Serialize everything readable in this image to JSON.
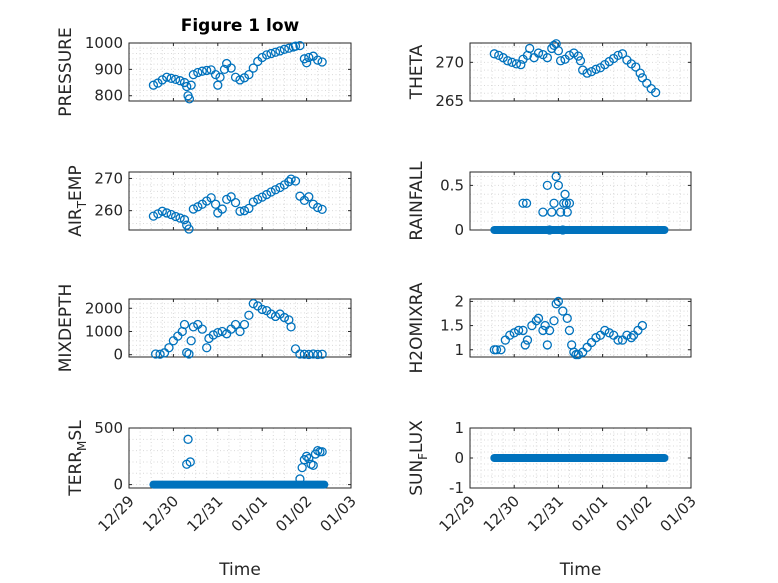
{
  "title": "Figure 1 low",
  "x_axis_label": "Time",
  "x_ticks": [
    "12/29",
    "12/30",
    "12/31",
    "01/01",
    "01/02",
    "01/03"
  ],
  "marker_color": "#0072bd",
  "chart_data": [
    {
      "type": "scatter",
      "name": "pressure",
      "title": "Figure 1 low",
      "ylabel": "PRESSURE",
      "xlabel": "",
      "ylim": [
        780,
        1000
      ],
      "yticks": [
        "800",
        "900",
        "1000"
      ],
      "ytick_values": [
        800,
        900,
        1000
      ],
      "pts": [
        [
          29.55,
          840
        ],
        [
          29.65,
          848
        ],
        [
          29.75,
          860
        ],
        [
          29.85,
          870
        ],
        [
          29.95,
          866
        ],
        [
          30.05,
          862
        ],
        [
          30.15,
          857
        ],
        [
          30.25,
          850
        ],
        [
          30.3,
          835
        ],
        [
          30.33,
          800
        ],
        [
          30.36,
          788
        ],
        [
          30.4,
          840
        ],
        [
          30.45,
          880
        ],
        [
          30.55,
          888
        ],
        [
          30.65,
          893
        ],
        [
          30.75,
          896
        ],
        [
          30.85,
          898
        ],
        [
          30.95,
          880
        ],
        [
          31.0,
          840
        ],
        [
          31.05,
          870
        ],
        [
          31.15,
          900
        ],
        [
          31.2,
          922
        ],
        [
          31.3,
          905
        ],
        [
          31.4,
          870
        ],
        [
          31.5,
          860
        ],
        [
          31.6,
          868
        ],
        [
          31.7,
          880
        ],
        [
          31.8,
          905
        ],
        [
          31.9,
          930
        ],
        [
          32.0,
          945
        ],
        [
          32.1,
          955
        ],
        [
          32.2,
          960
        ],
        [
          32.3,
          965
        ],
        [
          32.4,
          970
        ],
        [
          32.5,
          976
        ],
        [
          32.6,
          980
        ],
        [
          32.7,
          985
        ],
        [
          32.75,
          988
        ],
        [
          32.85,
          990
        ],
        [
          32.95,
          940
        ],
        [
          33.0,
          925
        ],
        [
          33.05,
          945
        ],
        [
          33.15,
          950
        ],
        [
          33.25,
          935
        ],
        [
          33.35,
          928
        ]
      ]
    },
    {
      "type": "scatter",
      "name": "theta",
      "ylabel": "THETA",
      "xlabel": "",
      "ylim": [
        265,
        272.5
      ],
      "yticks": [
        "265",
        "270"
      ],
      "ytick_values": [
        265,
        270
      ],
      "pts": [
        [
          29.55,
          271.1
        ],
        [
          29.65,
          270.9
        ],
        [
          29.75,
          270.6
        ],
        [
          29.85,
          270.2
        ],
        [
          29.95,
          270.0
        ],
        [
          30.05,
          269.8
        ],
        [
          30.15,
          269.7
        ],
        [
          30.2,
          270.4
        ],
        [
          30.3,
          270.9
        ],
        [
          30.35,
          271.8
        ],
        [
          30.45,
          270.6
        ],
        [
          30.55,
          271.2
        ],
        [
          30.65,
          271.0
        ],
        [
          30.75,
          270.6
        ],
        [
          30.85,
          271.8
        ],
        [
          30.9,
          272.2
        ],
        [
          30.95,
          272.4
        ],
        [
          31.0,
          271.5
        ],
        [
          31.05,
          270.2
        ],
        [
          31.15,
          270.4
        ],
        [
          31.25,
          270.9
        ],
        [
          31.35,
          271.2
        ],
        [
          31.45,
          270.8
        ],
        [
          31.5,
          270.2
        ],
        [
          31.55,
          269.0
        ],
        [
          31.65,
          268.6
        ],
        [
          31.75,
          268.8
        ],
        [
          31.85,
          269.1
        ],
        [
          31.95,
          269.3
        ],
        [
          32.05,
          269.7
        ],
        [
          32.15,
          270.1
        ],
        [
          32.25,
          270.5
        ],
        [
          32.35,
          270.9
        ],
        [
          32.45,
          271.1
        ],
        [
          32.55,
          270.3
        ],
        [
          32.65,
          269.8
        ],
        [
          32.75,
          269.4
        ],
        [
          32.85,
          268.6
        ],
        [
          32.9,
          268.0
        ],
        [
          33.0,
          267.3
        ],
        [
          33.1,
          266.6
        ],
        [
          33.2,
          266.1
        ]
      ]
    },
    {
      "type": "scatter",
      "name": "air-temp",
      "ylabel": "AIR_TEMP",
      "xlabel": "",
      "ylim": [
        254,
        272
      ],
      "yticks": [
        "260",
        "270"
      ],
      "ytick_values": [
        260,
        270
      ],
      "pts": [
        [
          29.55,
          258.3
        ],
        [
          29.65,
          259.0
        ],
        [
          29.75,
          259.8
        ],
        [
          29.85,
          259.3
        ],
        [
          29.95,
          258.8
        ],
        [
          30.05,
          258.2
        ],
        [
          30.15,
          257.7
        ],
        [
          30.25,
          257.2
        ],
        [
          30.3,
          255.5
        ],
        [
          30.35,
          254.3
        ],
        [
          30.45,
          260.5
        ],
        [
          30.55,
          261.2
        ],
        [
          30.65,
          262.0
        ],
        [
          30.75,
          263.0
        ],
        [
          30.85,
          264.0
        ],
        [
          30.95,
          262.0
        ],
        [
          31.0,
          259.3
        ],
        [
          31.1,
          260.5
        ],
        [
          31.2,
          263.5
        ],
        [
          31.3,
          264.3
        ],
        [
          31.4,
          262.5
        ],
        [
          31.5,
          259.8
        ],
        [
          31.6,
          260.0
        ],
        [
          31.7,
          260.7
        ],
        [
          31.8,
          262.7
        ],
        [
          31.9,
          263.5
        ],
        [
          32.0,
          264.2
        ],
        [
          32.1,
          265.0
        ],
        [
          32.2,
          265.8
        ],
        [
          32.3,
          266.5
        ],
        [
          32.4,
          267.2
        ],
        [
          32.5,
          268.0
        ],
        [
          32.6,
          269.0
        ],
        [
          32.65,
          269.8
        ],
        [
          32.75,
          269.2
        ],
        [
          32.85,
          264.5
        ],
        [
          32.95,
          263.2
        ],
        [
          33.05,
          264.3
        ],
        [
          33.15,
          262.0
        ],
        [
          33.25,
          261.0
        ],
        [
          33.35,
          260.4
        ]
      ]
    },
    {
      "type": "scatter",
      "name": "rainfall",
      "ylabel": "RAINFALL",
      "xlabel": "",
      "ylim": [
        0,
        0.65
      ],
      "yticks": [
        "0",
        "0.5"
      ],
      "ytick_values": [
        0,
        0.5
      ],
      "line": {
        "x0": 29.55,
        "x1": 33.4,
        "y": 0
      },
      "pts": [
        [
          30.2,
          0.3
        ],
        [
          30.28,
          0.3
        ],
        [
          30.65,
          0.2
        ],
        [
          30.75,
          0.5
        ],
        [
          30.85,
          0.2
        ],
        [
          30.9,
          0.3
        ],
        [
          30.95,
          0.6
        ],
        [
          31.0,
          0.5
        ],
        [
          31.05,
          0.2
        ],
        [
          31.12,
          0.3
        ],
        [
          31.15,
          0.4
        ],
        [
          31.18,
          0.3
        ],
        [
          31.2,
          0.2
        ],
        [
          31.25,
          0.3
        ],
        [
          30.8,
          0.0
        ],
        [
          31.1,
          0.0
        ]
      ]
    },
    {
      "type": "scatter",
      "name": "mixdepth",
      "ylabel": "MIXDEPTH",
      "xlabel": "",
      "ylim": [
        -100,
        2400
      ],
      "yticks": [
        "0",
        "1000",
        "2000"
      ],
      "ytick_values": [
        0,
        1000,
        2000
      ],
      "pts": [
        [
          29.6,
          30
        ],
        [
          29.7,
          20
        ],
        [
          29.8,
          80
        ],
        [
          29.9,
          300
        ],
        [
          30.0,
          600
        ],
        [
          30.1,
          800
        ],
        [
          30.2,
          1000
        ],
        [
          30.25,
          1300
        ],
        [
          30.3,
          90
        ],
        [
          30.35,
          30
        ],
        [
          30.4,
          600
        ],
        [
          30.45,
          1200
        ],
        [
          30.55,
          1300
        ],
        [
          30.65,
          1100
        ],
        [
          30.75,
          300
        ],
        [
          30.8,
          700
        ],
        [
          30.9,
          850
        ],
        [
          31.0,
          950
        ],
        [
          31.1,
          1000
        ],
        [
          31.2,
          900
        ],
        [
          31.3,
          1100
        ],
        [
          31.4,
          1300
        ],
        [
          31.5,
          1000
        ],
        [
          31.6,
          1300
        ],
        [
          31.7,
          1700
        ],
        [
          31.8,
          2200
        ],
        [
          31.9,
          2100
        ],
        [
          32.0,
          1950
        ],
        [
          32.1,
          1900
        ],
        [
          32.2,
          1750
        ],
        [
          32.3,
          1650
        ],
        [
          32.4,
          1750
        ],
        [
          32.5,
          1600
        ],
        [
          32.6,
          1500
        ],
        [
          32.65,
          1200
        ],
        [
          32.75,
          250
        ],
        [
          32.85,
          30
        ],
        [
          32.95,
          20
        ],
        [
          33.05,
          10
        ],
        [
          33.15,
          30
        ],
        [
          33.25,
          10
        ],
        [
          33.35,
          20
        ]
      ]
    },
    {
      "type": "scatter",
      "name": "h2omixra",
      "ylabel": "H2OMIXRA",
      "xlabel": "",
      "ylim": [
        0.85,
        2.05
      ],
      "yticks": [
        "1",
        "1.5",
        "2"
      ],
      "ytick_values": [
        1,
        1.5,
        2
      ],
      "pts": [
        [
          29.55,
          1.0
        ],
        [
          29.6,
          1.0
        ],
        [
          29.7,
          1.0
        ],
        [
          29.8,
          1.2
        ],
        [
          29.9,
          1.3
        ],
        [
          30.0,
          1.35
        ],
        [
          30.1,
          1.4
        ],
        [
          30.2,
          1.4
        ],
        [
          30.25,
          1.1
        ],
        [
          30.3,
          1.2
        ],
        [
          30.4,
          1.5
        ],
        [
          30.5,
          1.6
        ],
        [
          30.55,
          1.65
        ],
        [
          30.65,
          1.4
        ],
        [
          30.7,
          1.5
        ],
        [
          30.75,
          1.1
        ],
        [
          30.8,
          1.4
        ],
        [
          30.9,
          1.6
        ],
        [
          30.95,
          1.95
        ],
        [
          31.0,
          2.0
        ],
        [
          31.1,
          1.8
        ],
        [
          31.2,
          1.65
        ],
        [
          31.25,
          1.4
        ],
        [
          31.3,
          1.1
        ],
        [
          31.35,
          0.95
        ],
        [
          31.4,
          0.9
        ],
        [
          31.45,
          0.9
        ],
        [
          31.55,
          0.95
        ],
        [
          31.65,
          1.05
        ],
        [
          31.75,
          1.15
        ],
        [
          31.85,
          1.25
        ],
        [
          31.95,
          1.3
        ],
        [
          32.05,
          1.4
        ],
        [
          32.15,
          1.35
        ],
        [
          32.25,
          1.3
        ],
        [
          32.35,
          1.2
        ],
        [
          32.45,
          1.2
        ],
        [
          32.55,
          1.3
        ],
        [
          32.65,
          1.25
        ],
        [
          32.7,
          1.3
        ],
        [
          32.8,
          1.4
        ],
        [
          32.9,
          1.5
        ]
      ]
    },
    {
      "type": "scatter",
      "name": "terr-msl",
      "ylabel": "TERR_MSL",
      "xlabel": "",
      "ylim": [
        -30,
        500
      ],
      "yticks": [
        "0",
        "500"
      ],
      "ytick_values": [
        0,
        500
      ],
      "line": {
        "x0": 29.55,
        "x1": 33.4,
        "y": 0
      },
      "pts": [
        [
          30.3,
          180
        ],
        [
          30.33,
          400
        ],
        [
          30.38,
          200
        ],
        [
          32.85,
          50
        ],
        [
          32.9,
          150
        ],
        [
          32.95,
          220
        ],
        [
          33.0,
          250
        ],
        [
          33.05,
          230
        ],
        [
          33.1,
          180
        ],
        [
          33.15,
          170
        ],
        [
          33.2,
          270
        ],
        [
          33.25,
          300
        ],
        [
          33.3,
          290
        ],
        [
          33.35,
          290
        ]
      ]
    },
    {
      "type": "scatter",
      "name": "sun-flux",
      "ylabel": "SUN_FLUX",
      "xlabel": "Time",
      "ylim": [
        -1,
        1
      ],
      "yticks": [
        "-1",
        "0",
        "1"
      ],
      "ytick_values": [
        -1,
        0,
        1
      ],
      "line": {
        "x0": 29.55,
        "x1": 33.4,
        "y": 0
      },
      "pts": []
    }
  ]
}
